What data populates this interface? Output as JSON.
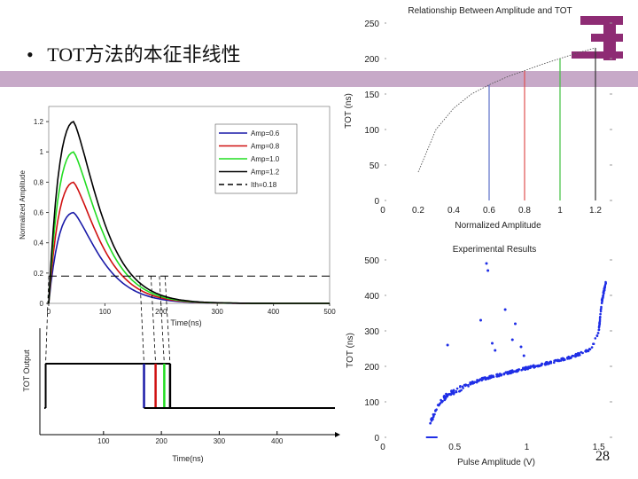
{
  "slide": {
    "bullet": "•",
    "title": "TOT方法的本征非线性",
    "page_number": "28",
    "accent_color": "#c7a9c8",
    "logo_color": "#8e2c74"
  },
  "chart_data": [
    {
      "type": "line",
      "id": "pulses",
      "xlabel": "Time(ns)",
      "ylabel": "Normalized Amplitude",
      "xlim": [
        0,
        500
      ],
      "ylim": [
        0,
        1.3
      ],
      "xticks": [
        "0",
        "100",
        "200",
        "300",
        "400",
        "500"
      ],
      "yticks": [
        "0",
        "0.2",
        "0.4",
        "0.6",
        "0.8",
        "1",
        "1.2"
      ],
      "peak_time_ns": 45,
      "decay_tau_ns": 45,
      "threshold": 0.18,
      "series": [
        {
          "name": "Amp=0.6",
          "amplitude": 0.6,
          "color": "#1a1aa8"
        },
        {
          "name": "Amp=0.8",
          "amplitude": 0.8,
          "color": "#d01010"
        },
        {
          "name": "Amp=1.0",
          "amplitude": 1.0,
          "color": "#22dd22"
        },
        {
          "name": "Amp=1.2",
          "amplitude": 1.2,
          "color": "#000000"
        },
        {
          "name": "Ith=0.18",
          "style": "dashed",
          "color": "#000000"
        }
      ]
    },
    {
      "type": "line",
      "id": "tot-output",
      "xlabel": "Time(ns)",
      "ylabel": "TOT Output",
      "xlim": [
        -10,
        500
      ],
      "xticks": [
        "100",
        "200",
        "300",
        "400"
      ],
      "start_ns": 0,
      "end_ns": [
        170,
        190,
        205,
        215
      ],
      "colors": [
        "#1a1aa8",
        "#d01010",
        "#22dd22",
        "#000000"
      ]
    },
    {
      "type": "line",
      "id": "relationship",
      "title": "Relationship Between Amplitude and TOT",
      "xlabel": "Normalized Amplitude",
      "ylabel": "TOT (ns)",
      "xlim": [
        0,
        1.3
      ],
      "ylim": [
        0,
        250
      ],
      "xticks": [
        "0",
        "0.2",
        "0.4",
        "0.6",
        "0.8",
        "1",
        "1.2"
      ],
      "yticks": [
        "0",
        "50",
        "100",
        "150",
        "200",
        "250"
      ],
      "x": [
        0.2,
        0.3,
        0.4,
        0.5,
        0.6,
        0.7,
        0.8,
        0.9,
        1.0,
        1.1,
        1.2
      ],
      "y": [
        40,
        100,
        130,
        150,
        163,
        174,
        183,
        192,
        200,
        208,
        215
      ],
      "markers": [
        {
          "x": 0.6,
          "y": 163,
          "color": "#5a6ec8"
        },
        {
          "x": 0.8,
          "y": 183,
          "color": "#e05050"
        },
        {
          "x": 1.0,
          "y": 200,
          "color": "#40c040"
        },
        {
          "x": 1.2,
          "y": 215,
          "color": "#333333"
        }
      ]
    },
    {
      "type": "scatter",
      "id": "experimental",
      "title": "Experimental Results",
      "xlabel": "Pulse Amplitude (V)",
      "ylabel": "TOT (ns)",
      "xlim": [
        0,
        1.6
      ],
      "ylim": [
        0,
        500
      ],
      "xticks": [
        "0",
        "0.5",
        "1",
        "1.5"
      ],
      "yticks": [
        "0",
        "100",
        "200",
        "300",
        "400",
        "500"
      ],
      "curve_x": [
        0.33,
        0.36,
        0.4,
        0.45,
        0.5,
        0.6,
        0.7,
        0.8,
        0.9,
        1.0,
        1.1,
        1.2,
        1.3,
        1.4,
        1.45,
        1.5,
        1.52,
        1.55
      ],
      "curve_y": [
        40,
        70,
        100,
        120,
        130,
        150,
        165,
        175,
        185,
        195,
        205,
        215,
        225,
        240,
        250,
        300,
        380,
        440
      ],
      "baseline": {
        "x0": 0.3,
        "x1": 0.38,
        "y": 0
      },
      "outliers": [
        {
          "x": 0.72,
          "y": 490
        },
        {
          "x": 0.73,
          "y": 470
        },
        {
          "x": 0.68,
          "y": 330
        },
        {
          "x": 0.85,
          "y": 360
        },
        {
          "x": 0.76,
          "y": 265
        },
        {
          "x": 0.45,
          "y": 260
        },
        {
          "x": 0.9,
          "y": 275
        },
        {
          "x": 0.92,
          "y": 320
        },
        {
          "x": 0.96,
          "y": 255
        },
        {
          "x": 0.98,
          "y": 230
        },
        {
          "x": 0.78,
          "y": 245
        }
      ],
      "color": "#1f2ee6"
    }
  ]
}
